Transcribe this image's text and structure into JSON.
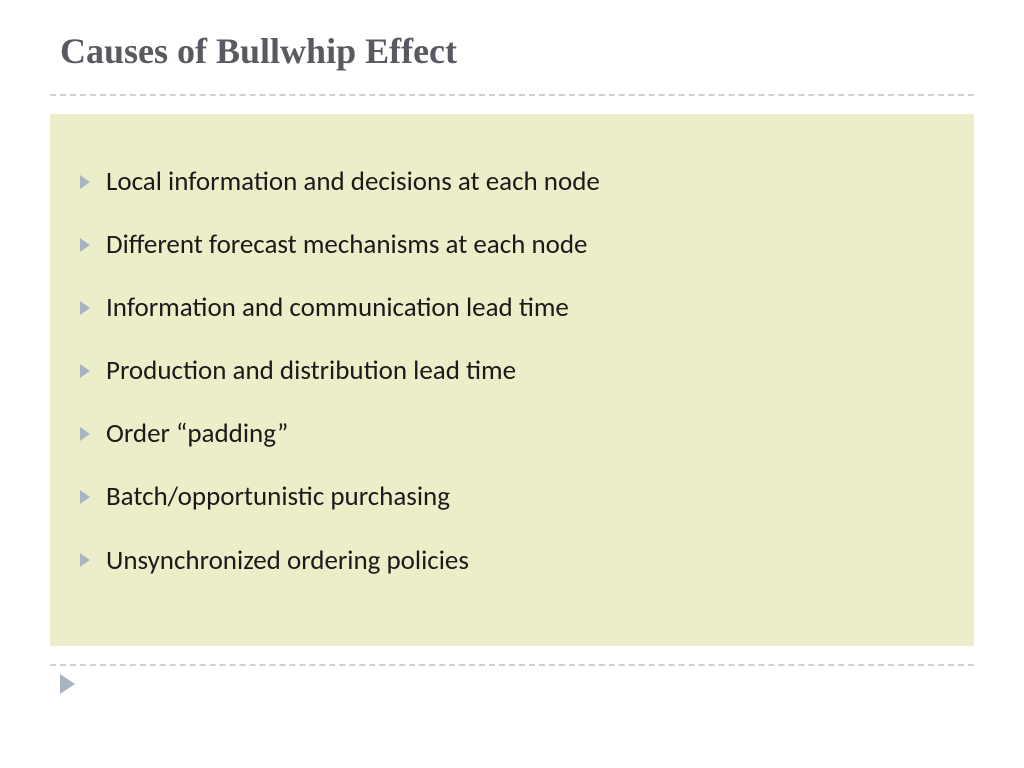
{
  "slide": {
    "title": "Causes of Bullwhip Effect",
    "bullets": [
      "Local information and decisions at each node",
      "Different forecast mechanisms at each node",
      "Information and communication lead time",
      "Production and distribution lead time",
      "Order “padding”",
      "Batch/opportunistic purchasing",
      "Unsynchronized ordering policies"
    ]
  },
  "style": {
    "title_color": "#595963",
    "title_fontsize": 36,
    "title_font": "Georgia serif bold",
    "body_fontsize": 27,
    "body_color": "#1a1a1a",
    "content_background": "#ecedc9",
    "page_background": "#ffffff",
    "divider_color": "#cfcfcf",
    "bullet_arrow_color": "#a9b4c2",
    "footer_arrow_color": "#a9b4c2",
    "line_spacing": 28
  }
}
